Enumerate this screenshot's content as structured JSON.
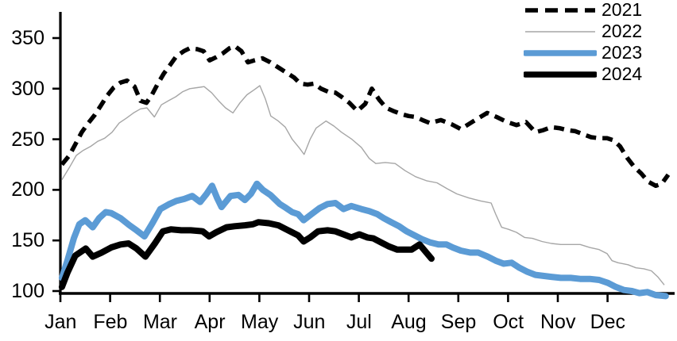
{
  "chart_data": {
    "type": "line",
    "x_axis": {
      "categories": [
        "Jan",
        "Feb",
        "Mar",
        "Apr",
        "May",
        "Jun",
        "Jul",
        "Aug",
        "Sep",
        "Oct",
        "Nov",
        "Dec"
      ]
    },
    "y_axis": {
      "range": [
        100,
        350
      ],
      "ticks": [
        350,
        300,
        250,
        200,
        150,
        100
      ],
      "tick_labels": [
        "350",
        "300",
        "250",
        "200",
        "150",
        "100"
      ]
    },
    "legend": {
      "position": "top-right",
      "entries": [
        "2021",
        "2022",
        "2023",
        "2024"
      ]
    },
    "grid": "off",
    "series": [
      {
        "name": "2021",
        "style": "dashed",
        "color": "#000000",
        "points": [
          [
            0.03,
            225
          ],
          [
            0.18,
            234
          ],
          [
            0.3,
            245
          ],
          [
            0.43,
            257
          ],
          [
            0.56,
            266
          ],
          [
            0.69,
            274
          ],
          [
            0.81,
            283
          ],
          [
            0.94,
            293
          ],
          [
            1.07,
            301
          ],
          [
            1.21,
            306
          ],
          [
            1.34,
            308
          ],
          [
            1.49,
            302
          ],
          [
            1.61,
            288
          ],
          [
            1.73,
            286
          ],
          [
            1.84,
            294
          ],
          [
            1.96,
            305
          ],
          [
            2.08,
            315
          ],
          [
            2.2,
            323
          ],
          [
            2.33,
            332
          ],
          [
            2.48,
            337
          ],
          [
            2.6,
            340
          ],
          [
            2.75,
            339
          ],
          [
            2.88,
            337
          ],
          [
            3.0,
            328
          ],
          [
            3.13,
            331
          ],
          [
            3.27,
            335
          ],
          [
            3.4,
            340
          ],
          [
            3.51,
            342
          ],
          [
            3.64,
            337
          ],
          [
            3.77,
            326
          ],
          [
            3.9,
            328
          ],
          [
            4.06,
            330
          ],
          [
            4.22,
            326
          ],
          [
            4.38,
            321
          ],
          [
            4.54,
            316
          ],
          [
            4.7,
            311
          ],
          [
            4.82,
            305
          ],
          [
            4.97,
            304
          ],
          [
            5.1,
            305
          ],
          [
            5.24,
            300
          ],
          [
            5.38,
            297
          ],
          [
            5.53,
            296
          ],
          [
            5.65,
            292
          ],
          [
            5.81,
            286
          ],
          [
            5.97,
            278
          ],
          [
            6.13,
            285
          ],
          [
            6.26,
            300
          ],
          [
            6.41,
            289
          ],
          [
            6.55,
            281
          ],
          [
            6.69,
            278
          ],
          [
            6.85,
            275
          ],
          [
            7.0,
            273
          ],
          [
            7.14,
            272
          ],
          [
            7.28,
            269
          ],
          [
            7.43,
            266
          ],
          [
            7.65,
            269
          ],
          [
            7.86,
            265
          ],
          [
            8.05,
            260
          ],
          [
            8.31,
            268
          ],
          [
            8.58,
            276
          ],
          [
            8.77,
            272
          ],
          [
            8.98,
            267
          ],
          [
            9.17,
            264
          ],
          [
            9.36,
            267
          ],
          [
            9.55,
            257
          ],
          [
            9.71,
            259
          ],
          [
            9.87,
            262
          ],
          [
            10.03,
            261
          ],
          [
            10.19,
            259
          ],
          [
            10.35,
            258
          ],
          [
            10.51,
            255
          ],
          [
            10.67,
            252
          ],
          [
            10.83,
            251
          ],
          [
            10.99,
            251
          ],
          [
            11.12,
            249
          ],
          [
            11.25,
            243
          ],
          [
            11.39,
            232
          ],
          [
            11.53,
            223
          ],
          [
            11.68,
            216
          ],
          [
            11.82,
            208
          ],
          [
            11.97,
            204
          ],
          [
            12.09,
            206
          ],
          [
            12.22,
            215
          ]
        ]
      },
      {
        "name": "2022",
        "style": "thin",
        "color": "#a6a6a6",
        "points": [
          [
            0.03,
            210
          ],
          [
            0.18,
            222
          ],
          [
            0.32,
            234
          ],
          [
            0.46,
            239
          ],
          [
            0.61,
            243
          ],
          [
            0.75,
            248
          ],
          [
            0.89,
            251
          ],
          [
            1.04,
            257
          ],
          [
            1.18,
            266
          ],
          [
            1.33,
            271
          ],
          [
            1.47,
            276
          ],
          [
            1.61,
            280
          ],
          [
            1.74,
            281
          ],
          [
            1.89,
            272
          ],
          [
            2.03,
            284
          ],
          [
            2.17,
            288
          ],
          [
            2.32,
            292
          ],
          [
            2.46,
            297
          ],
          [
            2.6,
            300
          ],
          [
            2.75,
            301
          ],
          [
            2.89,
            302
          ],
          [
            3.04,
            296
          ],
          [
            3.18,
            288
          ],
          [
            3.32,
            281
          ],
          [
            3.47,
            276
          ],
          [
            3.61,
            286
          ],
          [
            3.75,
            294
          ],
          [
            3.9,
            299
          ],
          [
            4.01,
            303
          ],
          [
            4.12,
            290
          ],
          [
            4.23,
            273
          ],
          [
            4.38,
            268
          ],
          [
            4.52,
            262
          ],
          [
            4.66,
            250
          ],
          [
            4.81,
            241
          ],
          [
            4.9,
            235
          ],
          [
            5.02,
            250
          ],
          [
            5.14,
            261
          ],
          [
            5.34,
            268
          ],
          [
            5.5,
            263
          ],
          [
            5.65,
            257
          ],
          [
            5.86,
            250
          ],
          [
            6.05,
            242
          ],
          [
            6.21,
            231
          ],
          [
            6.34,
            226
          ],
          [
            6.53,
            227
          ],
          [
            6.73,
            226
          ],
          [
            6.93,
            219
          ],
          [
            7.14,
            213
          ],
          [
            7.36,
            209
          ],
          [
            7.57,
            207
          ],
          [
            7.78,
            201
          ],
          [
            7.97,
            196
          ],
          [
            8.21,
            192
          ],
          [
            8.45,
            189
          ],
          [
            8.66,
            187
          ],
          [
            8.75,
            176
          ],
          [
            8.87,
            163
          ],
          [
            9.01,
            161
          ],
          [
            9.17,
            158
          ],
          [
            9.33,
            153
          ],
          [
            9.49,
            152
          ],
          [
            9.68,
            149
          ],
          [
            9.87,
            147
          ],
          [
            10.06,
            146
          ],
          [
            10.26,
            146
          ],
          [
            10.45,
            146
          ],
          [
            10.64,
            143
          ],
          [
            10.83,
            141
          ],
          [
            10.99,
            137
          ],
          [
            11.09,
            130
          ],
          [
            11.21,
            128
          ],
          [
            11.41,
            126
          ],
          [
            11.57,
            123
          ],
          [
            11.73,
            122
          ],
          [
            11.88,
            120
          ],
          [
            12.01,
            114
          ],
          [
            12.14,
            106
          ]
        ]
      },
      {
        "name": "2023",
        "style": "thick",
        "color": "#5b9bd5",
        "points": [
          [
            0.03,
            113
          ],
          [
            0.14,
            130
          ],
          [
            0.27,
            152
          ],
          [
            0.38,
            166
          ],
          [
            0.5,
            170
          ],
          [
            0.65,
            163
          ],
          [
            0.78,
            172
          ],
          [
            0.91,
            178
          ],
          [
            1.02,
            177
          ],
          [
            1.21,
            172
          ],
          [
            1.39,
            165
          ],
          [
            1.53,
            160
          ],
          [
            1.69,
            154
          ],
          [
            1.85,
            167
          ],
          [
            2.01,
            181
          ],
          [
            2.19,
            186
          ],
          [
            2.33,
            189
          ],
          [
            2.49,
            191
          ],
          [
            2.65,
            194
          ],
          [
            2.81,
            188
          ],
          [
            2.94,
            196
          ],
          [
            3.05,
            204
          ],
          [
            3.15,
            192
          ],
          [
            3.24,
            183
          ],
          [
            3.42,
            194
          ],
          [
            3.58,
            195
          ],
          [
            3.71,
            190
          ],
          [
            3.83,
            196
          ],
          [
            3.95,
            206
          ],
          [
            4.07,
            200
          ],
          [
            4.22,
            195
          ],
          [
            4.41,
            186
          ],
          [
            4.54,
            182
          ],
          [
            4.66,
            178
          ],
          [
            4.78,
            176
          ],
          [
            4.89,
            170
          ],
          [
            5.05,
            176
          ],
          [
            5.21,
            182
          ],
          [
            5.37,
            186
          ],
          [
            5.53,
            187
          ],
          [
            5.69,
            181
          ],
          [
            5.85,
            184
          ],
          [
            6.05,
            181
          ],
          [
            6.21,
            179
          ],
          [
            6.37,
            176
          ],
          [
            6.5,
            172
          ],
          [
            6.65,
            168
          ],
          [
            6.81,
            164
          ],
          [
            6.96,
            159
          ],
          [
            7.12,
            155
          ],
          [
            7.28,
            151
          ],
          [
            7.44,
            148
          ],
          [
            7.6,
            146
          ],
          [
            7.76,
            146
          ],
          [
            7.89,
            143
          ],
          [
            8.05,
            140
          ],
          [
            8.24,
            138
          ],
          [
            8.4,
            138
          ],
          [
            8.59,
            134
          ],
          [
            8.75,
            130
          ],
          [
            8.91,
            127
          ],
          [
            9.07,
            128
          ],
          [
            9.23,
            123
          ],
          [
            9.39,
            119
          ],
          [
            9.55,
            116
          ],
          [
            9.71,
            115
          ],
          [
            9.87,
            114
          ],
          [
            10.06,
            113
          ],
          [
            10.26,
            113
          ],
          [
            10.45,
            112
          ],
          [
            10.64,
            112
          ],
          [
            10.83,
            111
          ],
          [
            11.01,
            108
          ],
          [
            11.17,
            104
          ],
          [
            11.33,
            101
          ],
          [
            11.49,
            100
          ],
          [
            11.64,
            98
          ],
          [
            11.8,
            99
          ],
          [
            11.97,
            96
          ],
          [
            12.17,
            95
          ]
        ]
      },
      {
        "name": "2024",
        "style": "thick",
        "color": "#000000",
        "points": [
          [
            0.03,
            104
          ],
          [
            0.14,
            118
          ],
          [
            0.3,
            135
          ],
          [
            0.51,
            142
          ],
          [
            0.65,
            134
          ],
          [
            0.83,
            138
          ],
          [
            1.02,
            143
          ],
          [
            1.21,
            146
          ],
          [
            1.37,
            147
          ],
          [
            1.53,
            142
          ],
          [
            1.71,
            134
          ],
          [
            1.9,
            147
          ],
          [
            2.06,
            159
          ],
          [
            2.22,
            161
          ],
          [
            2.43,
            160
          ],
          [
            2.62,
            160
          ],
          [
            2.86,
            159
          ],
          [
            2.99,
            154
          ],
          [
            3.13,
            158
          ],
          [
            3.34,
            163
          ],
          [
            3.5,
            164
          ],
          [
            3.71,
            165
          ],
          [
            3.87,
            166
          ],
          [
            3.98,
            168
          ],
          [
            4.19,
            167
          ],
          [
            4.38,
            165
          ],
          [
            4.54,
            161
          ],
          [
            4.66,
            158
          ],
          [
            4.78,
            155
          ],
          [
            4.89,
            149
          ],
          [
            5.02,
            153
          ],
          [
            5.18,
            159
          ],
          [
            5.37,
            160
          ],
          [
            5.53,
            159
          ],
          [
            5.69,
            156
          ],
          [
            5.85,
            153
          ],
          [
            6.01,
            156
          ],
          [
            6.17,
            153
          ],
          [
            6.29,
            152
          ],
          [
            6.45,
            148
          ],
          [
            6.61,
            144
          ],
          [
            6.77,
            141
          ],
          [
            6.93,
            141
          ],
          [
            7.06,
            141
          ],
          [
            7.22,
            146
          ],
          [
            7.46,
            132
          ]
        ]
      }
    ]
  }
}
